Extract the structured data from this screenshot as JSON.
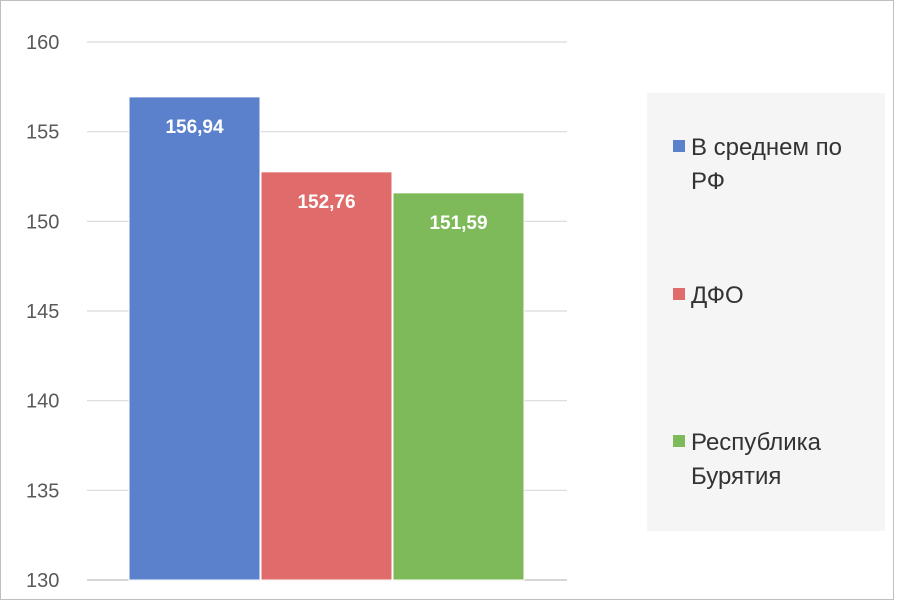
{
  "chart_data": {
    "type": "bar",
    "categories": [
      "В среднем по РФ",
      "ДФО",
      "Республика Бурятия"
    ],
    "values": [
      156.94,
      152.76,
      151.59
    ],
    "data_labels": [
      "156,94",
      "152,76",
      "151,59"
    ],
    "colors": [
      "#5b80cc",
      "#e06b6b",
      "#7fba5a"
    ],
    "ylim": [
      130,
      160
    ],
    "yticks": [
      "130",
      "135",
      "140",
      "145",
      "150",
      "155",
      "160"
    ],
    "grid": true,
    "legend_position": "right",
    "title": "",
    "xlabel": "",
    "ylabel": ""
  },
  "legend": {
    "items": [
      {
        "label": "В среднем по РФ",
        "color": "#5b80cc"
      },
      {
        "label": "ДФО",
        "color": "#e06b6b"
      },
      {
        "label": "Республика Бурятия",
        "color": "#7fba5a"
      }
    ]
  }
}
